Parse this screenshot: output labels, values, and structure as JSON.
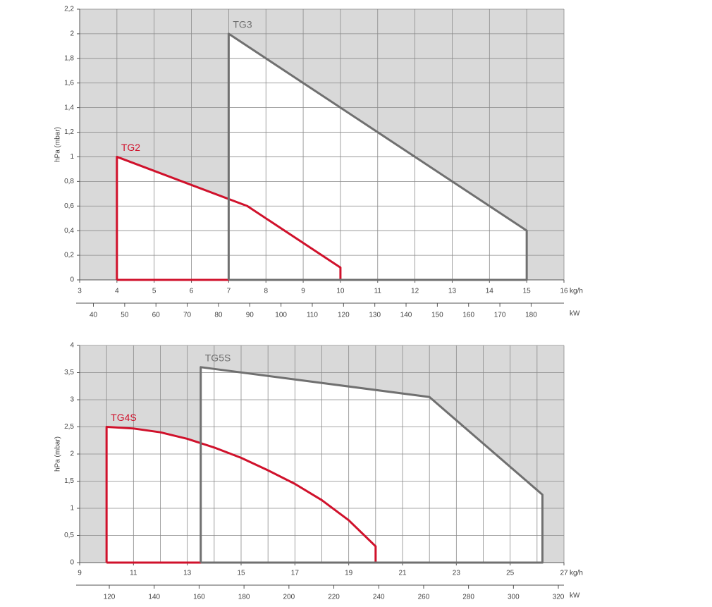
{
  "chart_data": [
    {
      "type": "line",
      "ylabel": "hPa (mbar)",
      "x_unit": "kg/h",
      "x2_unit": "kW",
      "grid": true,
      "xlim": [
        3,
        16
      ],
      "xticks": [
        3,
        4,
        5,
        6,
        7,
        8,
        9,
        10,
        11,
        12,
        13,
        14,
        15,
        16
      ],
      "ylim": [
        0,
        2.2
      ],
      "yticks": [
        0,
        {
          "value": 0.2,
          "label": "0,2"
        },
        {
          "value": 0.4,
          "label": "0,4"
        },
        {
          "value": 0.6,
          "label": "0,6"
        },
        {
          "value": 0.8,
          "label": "0,8"
        },
        1,
        {
          "value": 1.2,
          "label": "1,2"
        },
        {
          "value": 1.4,
          "label": "1,4"
        },
        {
          "value": 1.6,
          "label": "1,6"
        },
        {
          "value": 1.8,
          "label": "1,8"
        },
        2,
        {
          "value": 2.2,
          "label": "2,2"
        }
      ],
      "x2lim": [
        35.6,
        190.5
      ],
      "x2ticks": [
        40,
        50,
        60,
        70,
        80,
        90,
        100,
        110,
        120,
        130,
        140,
        150,
        160,
        170,
        180
      ],
      "series": [
        {
          "name": "TG2",
          "color": "#d0112b",
          "x": [
            4,
            4,
            7.5,
            10,
            10,
            4
          ],
          "values": [
            0,
            1,
            0.6,
            0.1,
            0,
            0
          ]
        },
        {
          "name": "TG3",
          "color": "#707070",
          "x": [
            7,
            7,
            15,
            15,
            7
          ],
          "values": [
            0,
            2,
            0.4,
            0,
            0
          ]
        }
      ]
    },
    {
      "type": "line",
      "ylabel": "hPa (mbar)",
      "x_unit": "kg/h",
      "x2_unit": "kW",
      "grid": true,
      "xlim": [
        9,
        27
      ],
      "xticks": [
        9,
        11,
        13,
        15,
        17,
        19,
        21,
        23,
        25,
        27
      ],
      "xminorticks": [
        10,
        12,
        14,
        16,
        18,
        20,
        22,
        24,
        26
      ],
      "ylim": [
        0,
        4
      ],
      "yticks": [
        0,
        {
          "value": 0.5,
          "label": "0,5"
        },
        1,
        {
          "value": 1.5,
          "label": "1,5"
        },
        2,
        {
          "value": 2.5,
          "label": "2,5"
        },
        3,
        {
          "value": 3.5,
          "label": "3,5"
        },
        4
      ],
      "x2lim": [
        106.8,
        322.5
      ],
      "x2ticks": [
        120,
        140,
        160,
        180,
        200,
        220,
        240,
        260,
        280,
        300,
        320
      ],
      "series": [
        {
          "name": "TG4S",
          "color": "#d0112b",
          "x": [
            10,
            10,
            11,
            12,
            13,
            14,
            15,
            16,
            17,
            18,
            19,
            20,
            20,
            10
          ],
          "values": [
            0,
            2.5,
            2.47,
            2.4,
            2.28,
            2.12,
            1.93,
            1.7,
            1.45,
            1.15,
            0.78,
            0.3,
            0,
            0
          ]
        },
        {
          "name": "TG5S",
          "color": "#707070",
          "x": [
            13.5,
            13.5,
            22,
            26.2,
            26.2,
            13.5
          ],
          "values": [
            0,
            3.6,
            3.05,
            1.25,
            0,
            0
          ]
        }
      ]
    }
  ]
}
